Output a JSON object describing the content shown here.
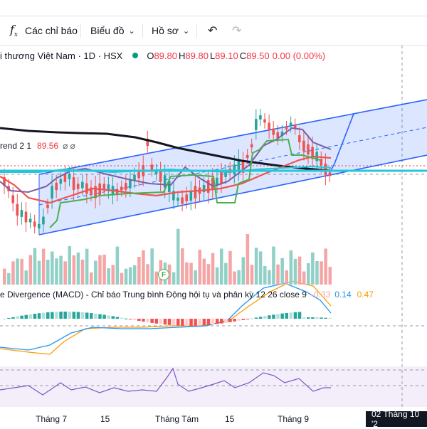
{
  "toolbar": {
    "indicators_label": "Các chỉ báo",
    "charts_label": "Biểu đồ",
    "profile_label": "Hồ sơ"
  },
  "legend": {
    "symbol_title": "i thương Việt Nam · 1D · HSX",
    "o_label": "O",
    "o_value": "89.80",
    "h_label": "H",
    "h_value": "89.80",
    "l_label": "L",
    "l_value": "89.10",
    "c_label": "C",
    "c_value": "89.50",
    "change": "0.00 (0.00%)",
    "status_color": "#089981"
  },
  "supertrend": {
    "label": "rend 2 1",
    "value": "89.56",
    "icons": "⌀ ⌀"
  },
  "macd": {
    "label": "e Divergence (MACD) - Chỉ báo Trung bình Động hội tụ và phân kỳ 12 26 close 9",
    "hist": "-0.33",
    "macd_val": "0.14",
    "signal_val": "0.47"
  },
  "volume": {
    "marker": "F"
  },
  "x_axis": {
    "labels": [
      "Tháng 7",
      "15",
      "Tháng Tám",
      "15",
      "Tháng 9"
    ]
  },
  "date_badge": "02 Tháng 10 '2",
  "colors": {
    "up": "#26a69a",
    "down": "#ef5350",
    "channel": "#2962ff",
    "ma_black": "#131722",
    "ma_red": "#f23645",
    "ma_purple": "#7b5ea7",
    "st_green": "#4caf50",
    "cyan": "#26c6da"
  }
}
